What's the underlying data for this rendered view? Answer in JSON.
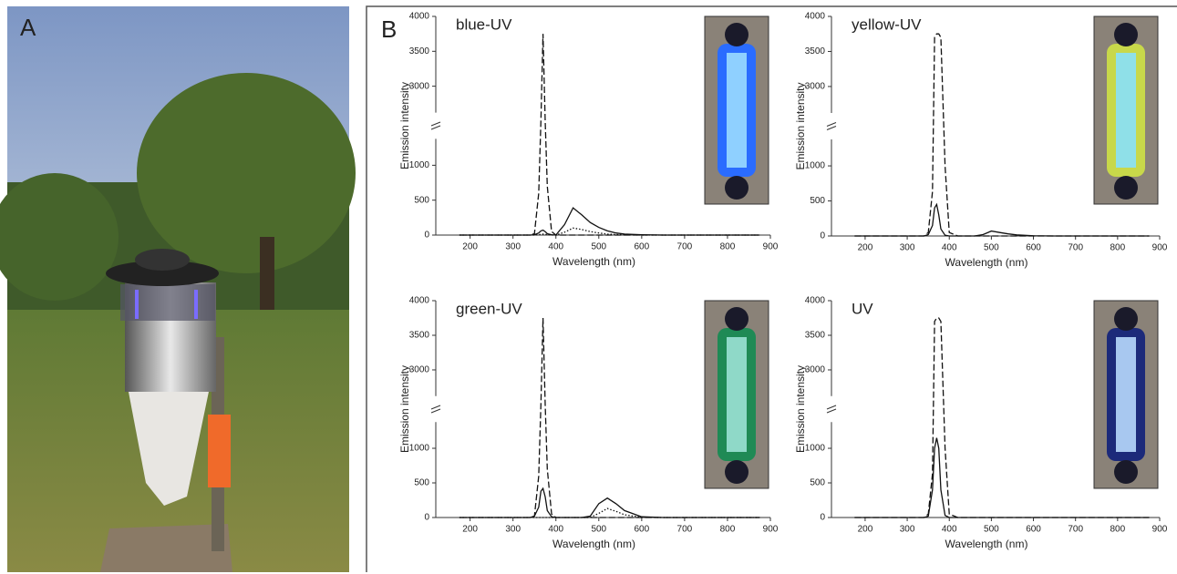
{
  "panel_labels": {
    "a": "A",
    "b": "B"
  },
  "chart_data": [
    {
      "type": "line",
      "title": "blue-UV",
      "xlabel": "Wavelength (nm)",
      "ylabel": "Emission intensity",
      "xlim": [
        120,
        900
      ],
      "xticks": [
        200,
        300,
        400,
        500,
        600,
        700,
        800,
        900
      ],
      "ylim": [
        0,
        4000
      ],
      "yticks": [
        0,
        500,
        1000,
        3000,
        3500,
        4000
      ],
      "y_break": [
        1300,
        2700
      ],
      "x": [
        175,
        340,
        350,
        360,
        365,
        370,
        375,
        380,
        390,
        400,
        420,
        440,
        460,
        480,
        500,
        520,
        540,
        560,
        600,
        650,
        875
      ],
      "series": [
        {
          "style": "dashed",
          "color": "#111",
          "values": [
            0,
            0,
            20,
            600,
            2500,
            3750,
            2500,
            700,
            50,
            0,
            0,
            0,
            0,
            0,
            0,
            0,
            0,
            0,
            0,
            0,
            0
          ]
        },
        {
          "style": "solid",
          "color": "#111",
          "values": [
            0,
            0,
            5,
            30,
            60,
            70,
            50,
            20,
            5,
            0,
            150,
            390,
            290,
            180,
            110,
            60,
            30,
            15,
            5,
            0,
            0
          ]
        },
        {
          "style": "dotted",
          "color": "#111",
          "values": [
            0,
            0,
            0,
            5,
            10,
            15,
            10,
            5,
            0,
            0,
            40,
            100,
            80,
            50,
            30,
            15,
            8,
            4,
            0,
            0,
            0
          ]
        }
      ]
    },
    {
      "type": "line",
      "title": "yellow-UV",
      "xlabel": "Wavelength (nm)",
      "ylabel": "Emission intensity",
      "xlim": [
        120,
        900
      ],
      "xticks": [
        200,
        300,
        400,
        500,
        600,
        700,
        800,
        900
      ],
      "ylim": [
        0,
        4000
      ],
      "yticks": [
        0,
        500,
        1000,
        3000,
        3500,
        4000
      ],
      "y_break": [
        1300,
        2700
      ],
      "x": [
        175,
        340,
        350,
        360,
        365,
        370,
        375,
        380,
        390,
        400,
        420,
        440,
        460,
        480,
        500,
        520,
        540,
        560,
        600,
        650,
        875
      ],
      "series": [
        {
          "style": "dashed",
          "color": "#111",
          "values": [
            0,
            0,
            50,
            1500,
            3700,
            3750,
            3750,
            3700,
            1000,
            50,
            0,
            0,
            0,
            0,
            0,
            0,
            0,
            0,
            0,
            0,
            0
          ]
        },
        {
          "style": "solid",
          "color": "#111",
          "values": [
            0,
            0,
            20,
            150,
            400,
            450,
            300,
            100,
            10,
            0,
            0,
            0,
            0,
            20,
            70,
            50,
            30,
            15,
            3,
            0,
            0
          ]
        }
      ]
    },
    {
      "type": "line",
      "title": "green-UV",
      "xlabel": "Wavelength (nm)",
      "ylabel": "Emission intensity",
      "xlim": [
        120,
        900
      ],
      "xticks": [
        200,
        300,
        400,
        500,
        600,
        700,
        800,
        900
      ],
      "ylim": [
        0,
        4000
      ],
      "yticks": [
        0,
        500,
        1000,
        3000,
        3500,
        4000
      ],
      "y_break": [
        1300,
        2700
      ],
      "x": [
        175,
        340,
        350,
        360,
        365,
        370,
        375,
        380,
        390,
        400,
        420,
        440,
        460,
        480,
        500,
        520,
        540,
        560,
        600,
        650,
        875
      ],
      "series": [
        {
          "style": "dashed",
          "color": "#111",
          "values": [
            0,
            0,
            20,
            600,
            2500,
            3750,
            2500,
            700,
            50,
            0,
            0,
            0,
            0,
            0,
            0,
            0,
            0,
            0,
            0,
            0,
            0
          ]
        },
        {
          "style": "solid",
          "color": "#111",
          "values": [
            0,
            0,
            20,
            150,
            380,
            420,
            300,
            100,
            10,
            0,
            0,
            0,
            0,
            20,
            200,
            280,
            200,
            100,
            10,
            0,
            0
          ]
        },
        {
          "style": "dotted",
          "color": "#111",
          "values": [
            0,
            0,
            0,
            0,
            0,
            0,
            0,
            0,
            0,
            0,
            0,
            0,
            0,
            0,
            60,
            130,
            90,
            40,
            3,
            0,
            0
          ]
        }
      ]
    },
    {
      "type": "line",
      "title": "UV",
      "xlabel": "Wavelength (nm)",
      "ylabel": "Emission intensity",
      "xlim": [
        120,
        900
      ],
      "xticks": [
        200,
        300,
        400,
        500,
        600,
        700,
        800,
        900
      ],
      "ylim": [
        0,
        4000
      ],
      "yticks": [
        0,
        500,
        1000,
        3000,
        3500,
        4000
      ],
      "y_break": [
        1300,
        2700
      ],
      "x": [
        175,
        340,
        350,
        360,
        365,
        370,
        375,
        380,
        390,
        400,
        420,
        440,
        460,
        480,
        500,
        520,
        540,
        560,
        600,
        650,
        875
      ],
      "series": [
        {
          "style": "dashed",
          "color": "#111",
          "values": [
            0,
            0,
            50,
            1500,
            3700,
            3750,
            3750,
            3700,
            1000,
            50,
            0,
            0,
            0,
            0,
            0,
            0,
            0,
            0,
            0,
            0,
            0
          ]
        },
        {
          "style": "solid",
          "color": "#111",
          "values": [
            0,
            0,
            20,
            400,
            1000,
            1150,
            1000,
            400,
            30,
            0,
            0,
            0,
            0,
            0,
            0,
            0,
            0,
            0,
            0,
            0,
            0
          ]
        }
      ]
    }
  ]
}
